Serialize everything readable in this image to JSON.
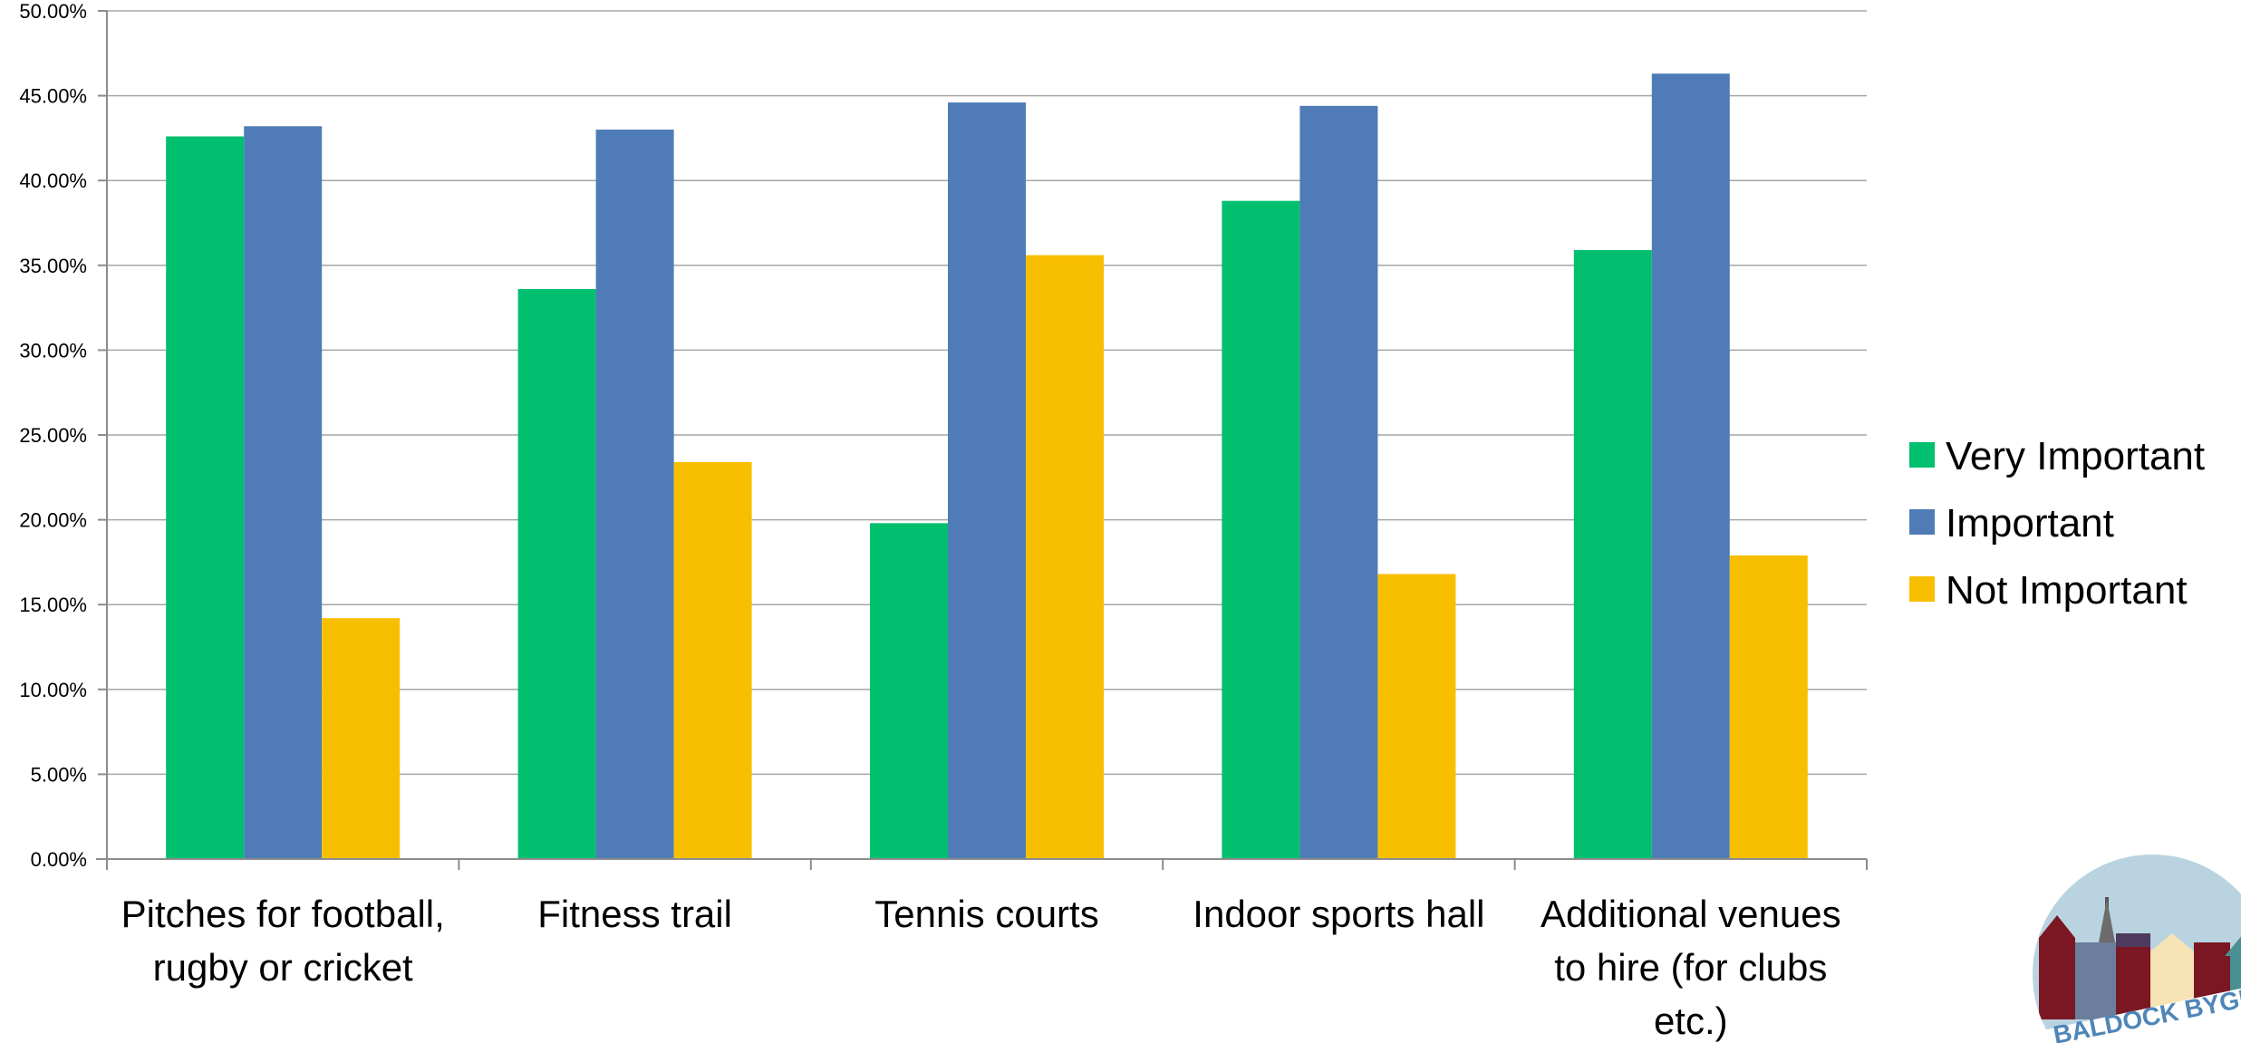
{
  "chart_data": {
    "type": "bar",
    "categories": [
      [
        "Pitches for football,",
        "rugby or cricket"
      ],
      [
        "Fitness trail"
      ],
      [
        "Tennis courts"
      ],
      [
        "Indoor sports hall"
      ],
      [
        "Additional venues",
        "to hire (for clubs",
        "etc.)"
      ]
    ],
    "series": [
      {
        "name": "Very Important",
        "color": "#00BF6F",
        "values": [
          42.6,
          33.6,
          19.8,
          38.8,
          35.9
        ]
      },
      {
        "name": "Important",
        "color": "#4F7CB7",
        "values": [
          43.2,
          43.0,
          44.6,
          44.4,
          46.3
        ]
      },
      {
        "name": "Not Important",
        "color": "#F8BF00",
        "values": [
          14.2,
          23.4,
          35.6,
          16.8,
          17.9
        ]
      }
    ],
    "ylim": [
      0,
      50
    ],
    "yticks": [
      "0.00%",
      "5.00%",
      "10.00%",
      "15.00%",
      "20.00%",
      "25.00%",
      "30.00%",
      "35.00%",
      "40.00%",
      "45.00%",
      "50.00%"
    ],
    "grid": true,
    "legend_position": "right",
    "title": "",
    "xlabel": "",
    "ylabel": ""
  },
  "logo": {
    "icon": "baldock-bygrave-logo",
    "text": "BALDOCK BYGRAVE"
  }
}
